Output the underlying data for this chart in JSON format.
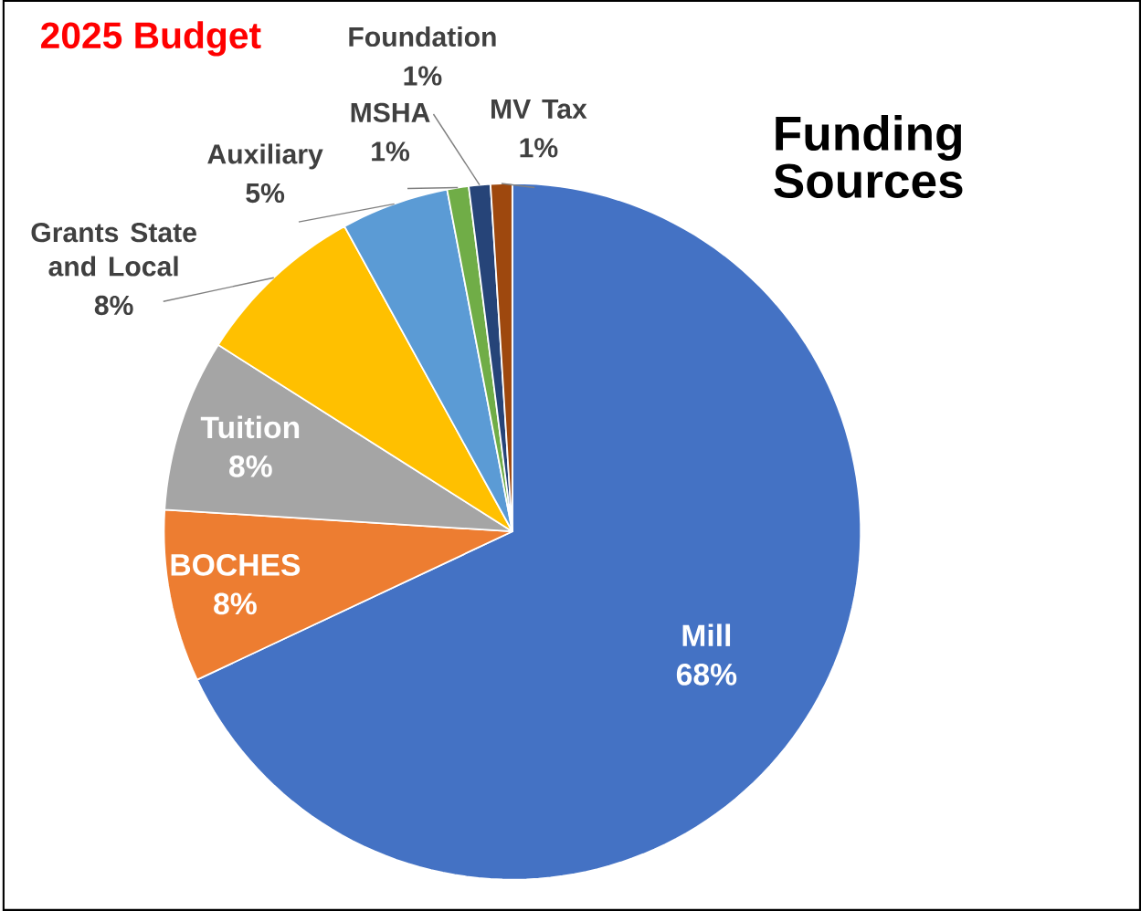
{
  "chart_data": {
    "type": "pie",
    "title": "Funding Sources",
    "subtitle": "2025 Budget",
    "categories": [
      "Mill",
      "BOCHES",
      "Tuition",
      "Grants State and Local",
      "Auxiliary",
      "MSHA",
      "Foundation",
      "MV Tax"
    ],
    "values": [
      68,
      8,
      8,
      8,
      5,
      1,
      1,
      1
    ],
    "colors": [
      "#4472c4",
      "#ed7d31",
      "#a5a5a5",
      "#ffc000",
      "#5b9bd5",
      "#70ad47",
      "#264478",
      "#9e480e"
    ],
    "value_labels": [
      "68%",
      "8%",
      "8%",
      "8%",
      "5%",
      "1%",
      "1%",
      "1%"
    ]
  }
}
